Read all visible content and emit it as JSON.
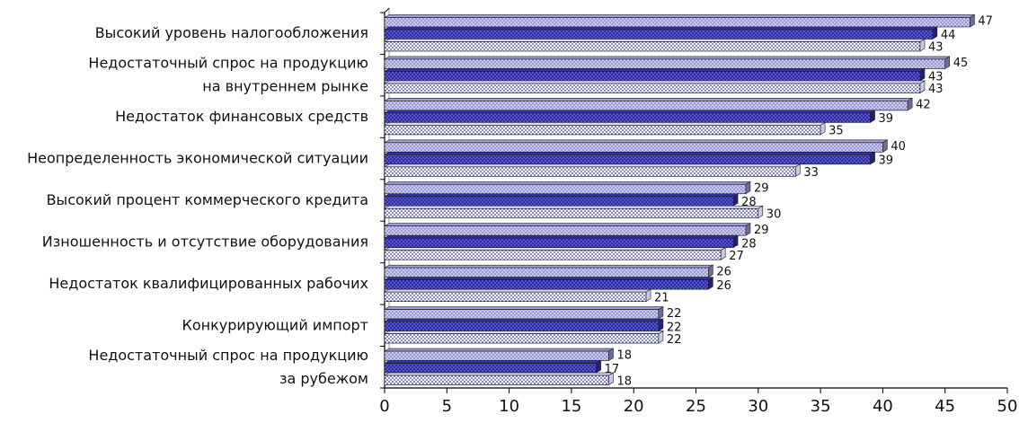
{
  "chart_data": {
    "type": "bar",
    "orientation": "horizontal",
    "title": "",
    "xlabel": "",
    "ylabel": "",
    "xlim": [
      0,
      50
    ],
    "x_ticks": [
      0,
      5,
      10,
      15,
      20,
      25,
      30,
      35,
      40,
      45,
      50
    ],
    "grid": false,
    "legend": "none",
    "categories": [
      {
        "lines": [
          "Высокий уровень налогообложения"
        ]
      },
      {
        "lines": [
          "Недостаточный спрос на продукцию",
          "на внутреннем рынке"
        ]
      },
      {
        "lines": [
          "Недостаток финансовых средств"
        ]
      },
      {
        "lines": [
          "Неопределенность экономической ситуации"
        ]
      },
      {
        "lines": [
          "Высокий процент коммерческого кредита"
        ]
      },
      {
        "lines": [
          "Изношенность и отсутствие оборудования"
        ]
      },
      {
        "lines": [
          "Недостаток квалифицированных рабочих"
        ]
      },
      {
        "lines": [
          "Конкурирующий импорт"
        ]
      },
      {
        "lines": [
          "Недостаточный спрос на продукцию",
          "за рубежом"
        ]
      }
    ],
    "series": [
      {
        "values": [
          47,
          45,
          42,
          40,
          29,
          29,
          26,
          22,
          18
        ],
        "color": "#9C9CD8",
        "pattern": "light-dots"
      },
      {
        "values": [
          44,
          43,
          39,
          39,
          28,
          28,
          26,
          22,
          17
        ],
        "color": "#2E2EA8",
        "pattern": "dark-dots"
      },
      {
        "values": [
          43,
          43,
          35,
          33,
          30,
          27,
          21,
          22,
          18
        ],
        "color": "#FFFFFF",
        "pattern": "blue-dots"
      }
    ]
  }
}
